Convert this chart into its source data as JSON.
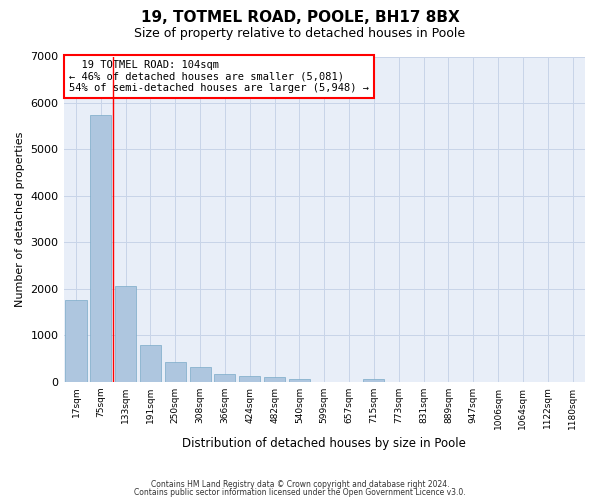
{
  "title_line1": "19, TOTMEL ROAD, POOLE, BH17 8BX",
  "title_line2": "Size of property relative to detached houses in Poole",
  "xlabel": "Distribution of detached houses by size in Poole",
  "ylabel": "Number of detached properties",
  "footnote1": "Contains HM Land Registry data © Crown copyright and database right 2024.",
  "footnote2": "Contains public sector information licensed under the Open Government Licence v3.0.",
  "categories": [
    "17sqm",
    "75sqm",
    "133sqm",
    "191sqm",
    "250sqm",
    "308sqm",
    "366sqm",
    "424sqm",
    "482sqm",
    "540sqm",
    "599sqm",
    "657sqm",
    "715sqm",
    "773sqm",
    "831sqm",
    "889sqm",
    "947sqm",
    "1006sqm",
    "1064sqm",
    "1122sqm",
    "1180sqm"
  ],
  "values": [
    1750,
    5750,
    2050,
    800,
    420,
    310,
    175,
    120,
    95,
    60,
    0,
    0,
    60,
    0,
    0,
    0,
    0,
    0,
    0,
    0,
    0
  ],
  "bar_color": "#aec6df",
  "bar_edge_color": "#7aaac8",
  "ylim": [
    0,
    7000
  ],
  "yticks": [
    0,
    1000,
    2000,
    3000,
    4000,
    5000,
    6000,
    7000
  ],
  "property_label": "19 TOTMEL ROAD: 104sqm",
  "pct_smaller": 46,
  "n_smaller": 5081,
  "pct_larger_semi": 54,
  "n_larger_semi": 5948,
  "vline_x_index": 1.5,
  "grid_color": "#c8d4e8",
  "bg_color": "#e8eef8",
  "bar_width": 0.85
}
